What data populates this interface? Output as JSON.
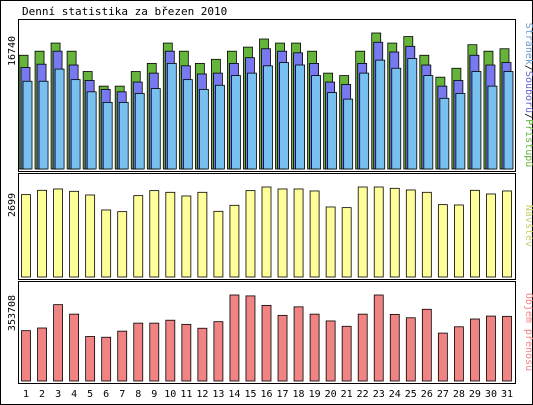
{
  "chart_data": {
    "type": "bar",
    "title": "Denní statistika za březen 2010",
    "categories": [
      "1",
      "2",
      "3",
      "4",
      "5",
      "6",
      "7",
      "8",
      "9",
      "10",
      "11",
      "12",
      "13",
      "14",
      "15",
      "16",
      "17",
      "18",
      "19",
      "20",
      "21",
      "22",
      "23",
      "24",
      "25",
      "26",
      "27",
      "28",
      "29",
      "30",
      "31"
    ],
    "weekend_days": [
      "6",
      "7",
      "13",
      "14",
      "20",
      "21",
      "27",
      "28"
    ],
    "panels": [
      {
        "name": "hits",
        "ymax_label": "16740",
        "ymax": 16740,
        "series_labels": [
          "Stránek",
          "Souborů",
          "Přístupů"
        ],
        "series": [
          {
            "name": "Přístupů",
            "color": "#66b43c",
            "values": [
              14000,
              14500,
              15500,
              14500,
              12000,
              10200,
              10200,
              12000,
              13000,
              15500,
              14500,
              13000,
              13500,
              14500,
              15000,
              16000,
              15500,
              15500,
              14500,
              11800,
              11500,
              14500,
              16740,
              15500,
              16300,
              14000,
              11300,
              12400,
              15300,
              14500,
              14800
            ]
          },
          {
            "name": "Souborů",
            "color": "#7878f0",
            "values": [
              12500,
              12900,
              14500,
              12800,
              10900,
              9800,
              9500,
              10700,
              11800,
              14500,
              12700,
              11700,
              11800,
              13000,
              13700,
              14800,
              14500,
              14300,
              13000,
              10700,
              10400,
              13000,
              15600,
              14400,
              15100,
              12800,
              10200,
              10900,
              14000,
              12800,
              13100
            ]
          },
          {
            "name": "Stránek",
            "color": "#78c0f0",
            "values": [
              10800,
              10800,
              12300,
              11000,
              9500,
              8200,
              8200,
              9300,
              9900,
              13000,
              11000,
              9800,
              10300,
              11500,
              11800,
              12700,
              13100,
              12800,
              11500,
              9400,
              8600,
              11800,
              13400,
              12400,
              13600,
              11500,
              8700,
              9300,
              12000,
              10200,
              12000
            ]
          }
        ]
      },
      {
        "name": "visits",
        "ymax_label": "2699",
        "ymax": 2699,
        "series_labels": [
          "Návštěv"
        ],
        "series": [
          {
            "name": "Návštěv",
            "color": "#ffff99",
            "values": [
              2470,
              2600,
              2640,
              2570,
              2460,
              2010,
              1960,
              2440,
              2590,
              2540,
              2430,
              2540,
              1970,
              2150,
              2590,
              2699,
              2640,
              2640,
              2580,
              2100,
              2080,
              2699,
              2699,
              2660,
              2610,
              2540,
              2170,
              2160,
              2600,
              2490,
              2580
            ]
          }
        ]
      },
      {
        "name": "kbytes",
        "ymax_label": "353708",
        "ymax": 353708,
        "series_labels": [
          "Objem přenosu"
        ],
        "series": [
          {
            "name": "Objem přenosu",
            "color": "#f08484",
            "values": [
              207000,
              218000,
              314000,
              275000,
              183000,
              180000,
              205000,
              238000,
              238000,
              250000,
              233000,
              217000,
              244000,
              353708,
              350000,
              311000,
              270000,
              305000,
              275000,
              247000,
              225000,
              275000,
              353708,
              274000,
              260000,
              295000,
              197000,
              223000,
              255000,
              267000,
              266000
            ]
          }
        ]
      }
    ]
  },
  "colors": {
    "weekday_label": "#000000",
    "weekend_label": "#339933",
    "label_hits_pages": "#6699cc",
    "label_hits_files": "#6666cc",
    "label_hits_accesses": "#66b43c",
    "label_visits": "#cccc66",
    "label_kbytes": "#f08484"
  }
}
